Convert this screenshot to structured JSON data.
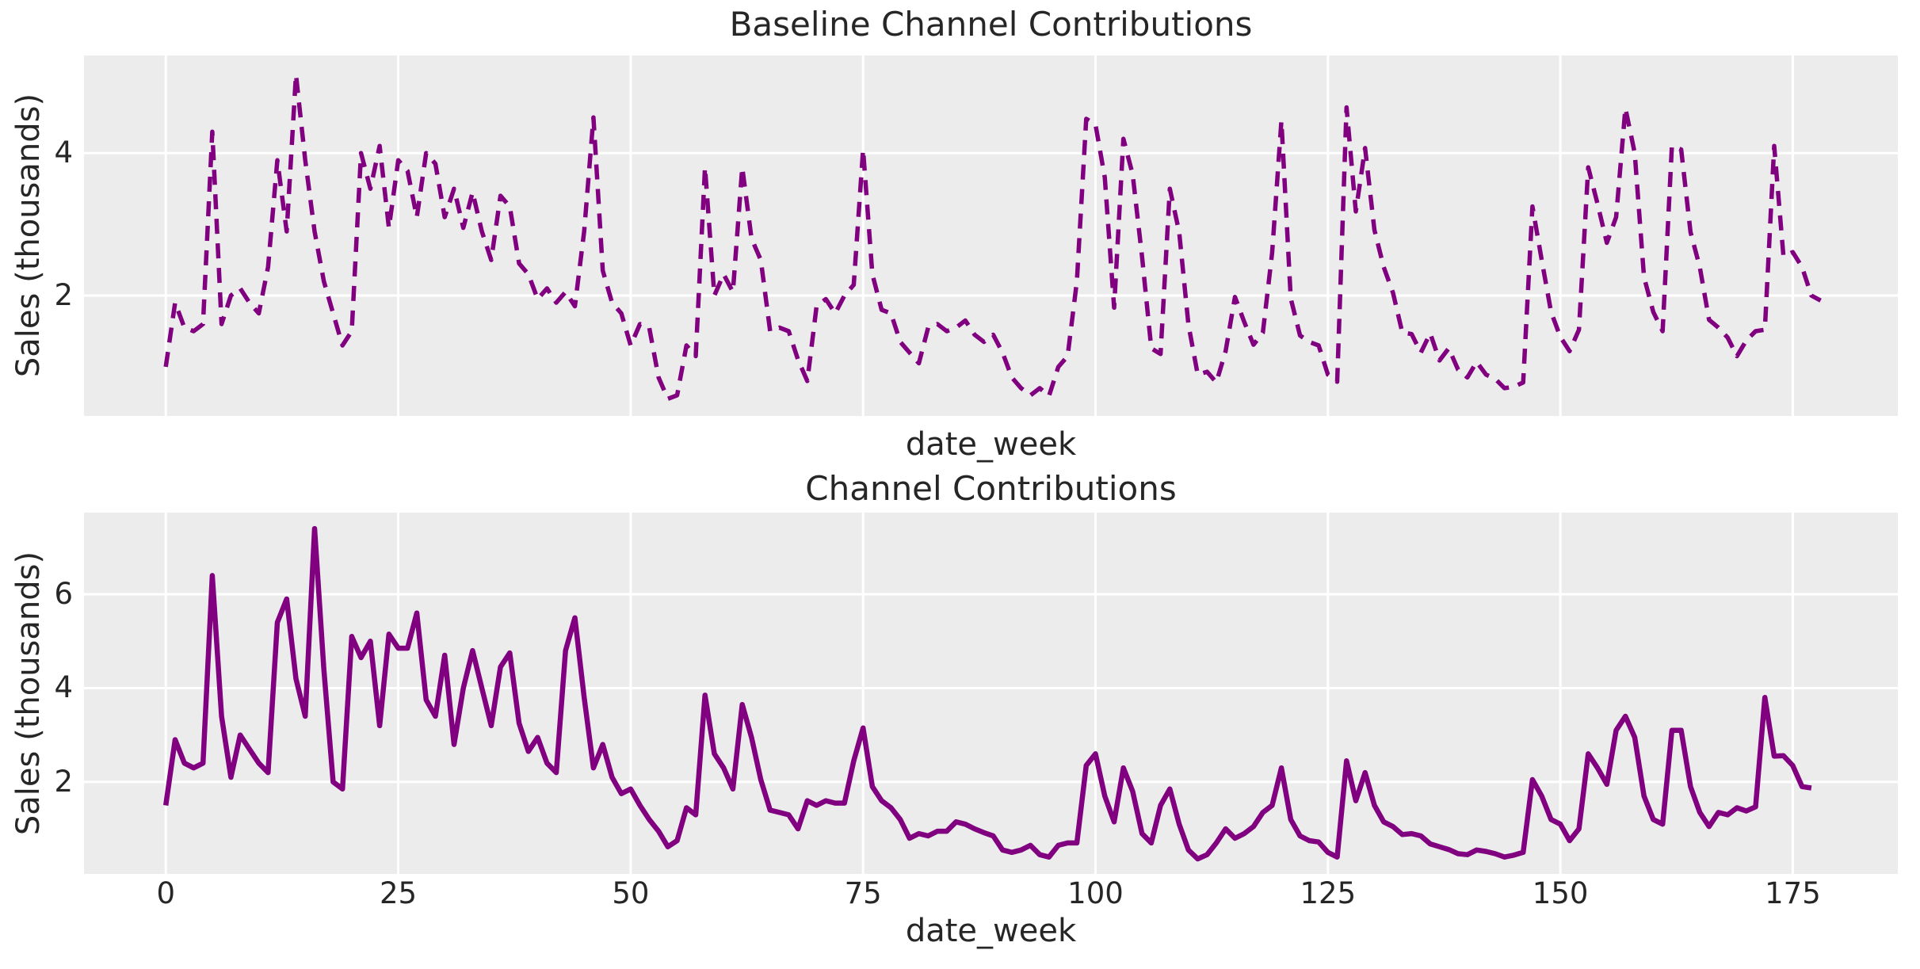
{
  "figure": {
    "background_color": "#ffffff",
    "axes_background_color": "#ececec",
    "grid_color": "#ffffff",
    "text_color": "#262626",
    "accent_line_color": "#800080"
  },
  "chart_data": [
    {
      "type": "line",
      "title": "Baseline Channel Contributions",
      "xlabel": "date_week",
      "ylabel": "Sales (thousands)",
      "legend": null,
      "grid": true,
      "line_color": "#800080",
      "line_style": "dashed",
      "x_start": 0,
      "x_step": 1,
      "xlim": [
        -8.8,
        186.3
      ],
      "ylim": [
        0.31,
        5.37
      ],
      "xticks": [
        0,
        25,
        50,
        75,
        100,
        125,
        150,
        175
      ],
      "xtick_labels_visible": false,
      "yticks": [
        2,
        4
      ],
      "values": [
        1.0,
        1.9,
        1.55,
        1.5,
        1.6,
        4.3,
        1.6,
        2.0,
        2.1,
        1.9,
        1.75,
        2.4,
        3.9,
        2.9,
        5.1,
        3.9,
        2.9,
        2.2,
        1.75,
        1.3,
        1.5,
        4.0,
        3.5,
        4.1,
        2.95,
        3.9,
        3.75,
        3.1,
        4.0,
        3.85,
        3.1,
        3.5,
        2.95,
        3.45,
        2.9,
        2.5,
        3.4,
        3.25,
        2.45,
        2.3,
        1.95,
        2.1,
        1.9,
        2.05,
        1.85,
        2.9,
        4.5,
        2.35,
        1.9,
        1.75,
        1.3,
        1.6,
        1.55,
        0.85,
        0.55,
        0.6,
        1.3,
        1.15,
        3.8,
        2.0,
        2.3,
        2.05,
        3.8,
        2.8,
        2.5,
        1.5,
        1.55,
        1.5,
        1.1,
        0.8,
        1.85,
        1.95,
        1.75,
        2.0,
        2.15,
        4.05,
        2.3,
        1.8,
        1.75,
        1.35,
        1.2,
        1.05,
        1.55,
        1.6,
        1.5,
        1.55,
        1.65,
        1.45,
        1.35,
        1.45,
        1.2,
        0.85,
        0.7,
        0.6,
        0.7,
        0.59,
        1.0,
        1.15,
        2.2,
        4.48,
        4.4,
        3.66,
        1.83,
        4.2,
        3.7,
        2.55,
        1.26,
        1.18,
        3.5,
        2.89,
        1.59,
        0.89,
        0.93,
        0.78,
        1.22,
        1.98,
        1.63,
        1.31,
        1.48,
        2.6,
        4.45,
        1.96,
        1.44,
        1.35,
        1.3,
        0.89,
        0.79,
        4.64,
        3.18,
        4.07,
        2.92,
        2.4,
        2.04,
        1.48,
        1.46,
        1.2,
        1.47,
        1.09,
        1.26,
        0.96,
        0.85,
        1.07,
        0.89,
        0.83,
        0.7,
        0.72,
        0.78,
        3.25,
        2.5,
        1.77,
        1.42,
        1.22,
        1.52,
        3.8,
        3.29,
        2.74,
        3.1,
        4.63,
        4.0,
        2.26,
        1.77,
        1.5,
        4.1,
        4.05,
        2.89,
        2.4,
        1.66,
        1.55,
        1.41,
        1.15,
        1.37,
        1.5,
        1.52,
        4.1,
        2.55,
        2.61,
        2.4,
        2.0,
        1.93
      ]
    },
    {
      "type": "line",
      "title": "Channel Contributions",
      "xlabel": "date_week",
      "ylabel": "Sales (thousands)",
      "legend": null,
      "grid": true,
      "line_color": "#800080",
      "line_style": "solid",
      "x_start": 0,
      "x_step": 1,
      "xlim": [
        -8.8,
        186.3
      ],
      "ylim": [
        0.04,
        7.74
      ],
      "xticks": [
        0,
        25,
        50,
        75,
        100,
        125,
        150,
        175
      ],
      "xtick_labels_visible": true,
      "yticks": [
        2,
        4,
        6
      ],
      "values": [
        1.5,
        2.9,
        2.4,
        2.3,
        2.4,
        6.4,
        3.4,
        2.1,
        3.0,
        2.7,
        2.4,
        2.2,
        5.4,
        5.9,
        4.2,
        3.4,
        7.4,
        4.4,
        2.0,
        1.85,
        5.1,
        4.65,
        5.0,
        3.2,
        5.15,
        4.85,
        4.85,
        5.6,
        3.75,
        3.4,
        4.7,
        2.8,
        4.0,
        4.8,
        4.0,
        3.2,
        4.45,
        4.75,
        3.25,
        2.65,
        2.95,
        2.4,
        2.2,
        4.8,
        5.5,
        3.8,
        2.3,
        2.8,
        2.1,
        1.75,
        1.85,
        1.5,
        1.2,
        0.95,
        0.62,
        0.75,
        1.45,
        1.3,
        3.85,
        2.6,
        2.3,
        1.85,
        3.65,
        2.95,
        2.05,
        1.4,
        1.35,
        1.3,
        1.0,
        1.6,
        1.5,
        1.6,
        1.55,
        1.55,
        2.45,
        3.15,
        1.9,
        1.6,
        1.45,
        1.2,
        0.8,
        0.9,
        0.85,
        0.95,
        0.95,
        1.15,
        1.1,
        1.0,
        0.92,
        0.85,
        0.55,
        0.5,
        0.55,
        0.65,
        0.45,
        0.4,
        0.65,
        0.7,
        0.7,
        2.35,
        2.6,
        1.7,
        1.15,
        2.3,
        1.8,
        0.9,
        0.7,
        1.5,
        1.85,
        1.1,
        0.55,
        0.36,
        0.45,
        0.7,
        1.0,
        0.8,
        0.9,
        1.05,
        1.35,
        1.5,
        2.3,
        1.2,
        0.85,
        0.75,
        0.72,
        0.5,
        0.4,
        2.45,
        1.6,
        2.2,
        1.5,
        1.15,
        1.05,
        0.88,
        0.9,
        0.85,
        0.68,
        0.62,
        0.56,
        0.47,
        0.45,
        0.55,
        0.52,
        0.47,
        0.4,
        0.44,
        0.5,
        2.05,
        1.7,
        1.2,
        1.1,
        0.75,
        1.0,
        2.6,
        2.3,
        1.95,
        3.1,
        3.4,
        2.95,
        1.7,
        1.2,
        1.1,
        3.1,
        3.1,
        1.9,
        1.35,
        1.05,
        1.35,
        1.3,
        1.45,
        1.38,
        1.47,
        3.8,
        2.55,
        2.56,
        2.35,
        1.9,
        1.87
      ]
    }
  ]
}
